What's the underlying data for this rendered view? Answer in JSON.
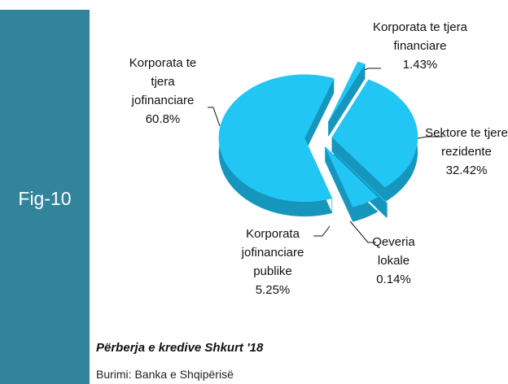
{
  "chart_data": {
    "type": "pie",
    "figure_label": "Fig-10",
    "title": "Përberja e kredive Shkurt '18",
    "source": "Burimi: Banka e Shqipërisë",
    "categories": [
      "Korporata te tjera financiare",
      "Sektore te tjere rezidente",
      "Qeveria lokale",
      "Korporata jofinanciare publike",
      "Korporata te tjera jofinanciare"
    ],
    "values": [
      1.43,
      32.42,
      0.14,
      5.25,
      60.8
    ],
    "value_labels": [
      "1.43%",
      "32.42%",
      "0.14%",
      "5.25%",
      "60.8%"
    ],
    "color": "#22c6f4",
    "side_color": "#1696bd"
  }
}
